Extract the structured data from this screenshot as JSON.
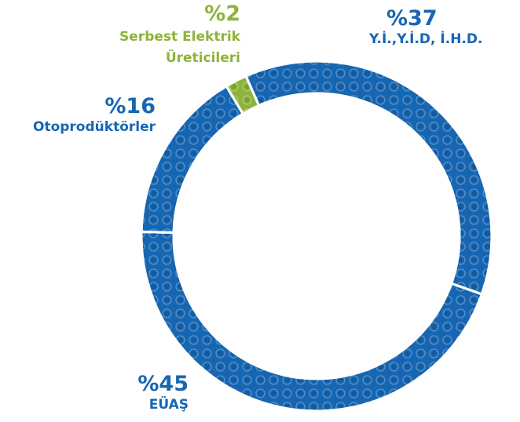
{
  "chart_data": {
    "type": "pie",
    "donut": true,
    "categories": [
      "Y.İ.,Y.İ.D, İ.H.D.",
      "EÜAŞ",
      "Otoprodüktörler",
      "Serbest Elektrik Üreticileri"
    ],
    "values": [
      37,
      45,
      16,
      2
    ],
    "value_labels": [
      "%37",
      "%45",
      "%16",
      "%2"
    ],
    "colors": [
      "#1766b2",
      "#1766b2",
      "#1766b2",
      "#8db33a"
    ]
  }
}
